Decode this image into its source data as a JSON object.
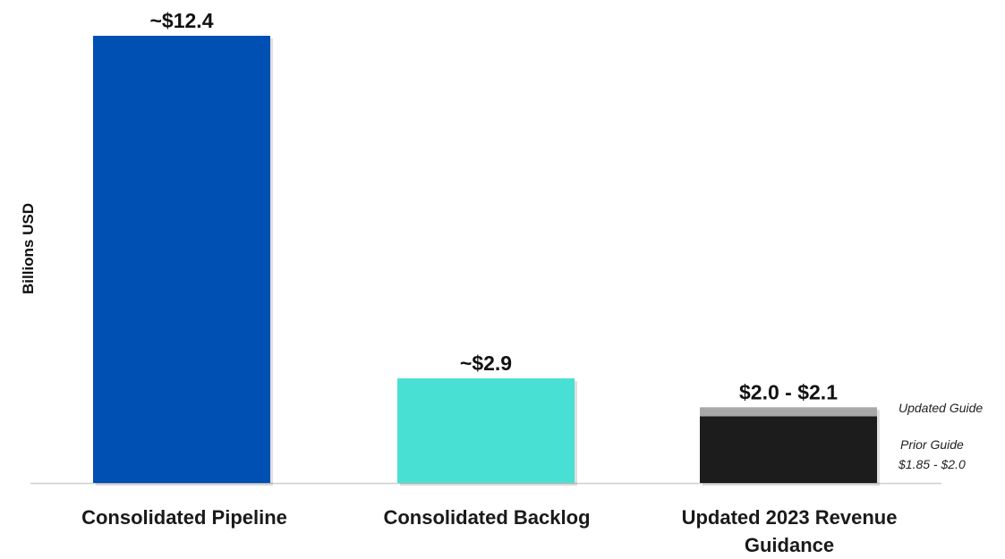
{
  "chart_data": {
    "type": "bar",
    "ylabel": "Billions USD",
    "ylim": [
      0,
      12.4
    ],
    "categories": [
      "Consolidated Pipeline",
      "Consolidated Backlog",
      "Updated 2023 Revenue Guidance"
    ],
    "bars": [
      {
        "category": "Consolidated Pipeline",
        "value": 12.4,
        "label": "~$12.4",
        "color": "#0050b4"
      },
      {
        "category": "Consolidated Backlog",
        "value": 2.9,
        "label": "~$2.9",
        "color": "#48e0d2"
      },
      {
        "category": "Updated 2023 Revenue Guidance",
        "low": 2.0,
        "high": 2.1,
        "label": "$2.0 - $2.1",
        "segments": [
          {
            "name": "Prior Guide",
            "from": 0,
            "to": 1.85,
            "color": "#1c1c1c"
          },
          {
            "name": "Updated Guide",
            "from": 1.85,
            "to": 2.1,
            "color": "#a8a8a8"
          }
        ]
      }
    ],
    "annotations": {
      "updated_guide": "Updated Guide",
      "prior_guide": "Prior Guide",
      "prior_guide_range": "$1.85 - $2.0"
    },
    "grid": false,
    "legend": "none"
  }
}
